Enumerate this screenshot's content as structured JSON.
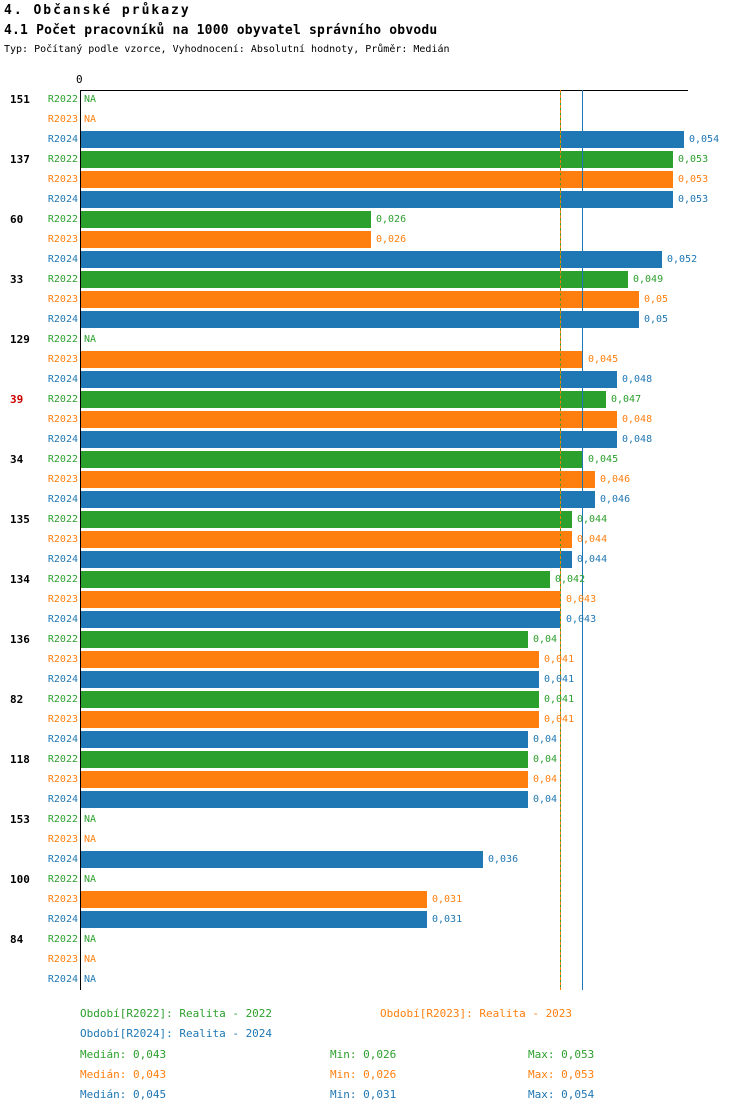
{
  "page": {
    "title": "4. Občanské průkazy",
    "subtitle": "4.1 Počet pracovníků na 1000 obyvatel správního obvodu",
    "meta": "Typ: Počítaný podle vzorce, Vyhodnocení: Absolutní hodnoty, Průměr: Medián"
  },
  "colors": {
    "R2022": "#2ca02c",
    "R2023": "#ff7f0e",
    "R2024": "#1f77b4",
    "highlight_label": "#cc0000",
    "axis": "#000000"
  },
  "chart_data": {
    "type": "bar",
    "orientation": "horizontal",
    "title": "4.1 Počet pracovníků na 1000 obyvatel správního obvodu",
    "xlabel": "",
    "ylabel": "",
    "x_axis": {
      "min": 0,
      "max": 0.054,
      "origin_label": "0"
    },
    "decimal_format": "comma",
    "na_text": "NA",
    "legend_position": "bottom",
    "series_names": [
      "R2022",
      "R2023",
      "R2024"
    ],
    "medians": {
      "R2022": 0.043,
      "R2023": 0.043,
      "R2024": 0.045
    },
    "groups": [
      {
        "label": "151",
        "highlight": false,
        "values": {
          "R2022": null,
          "R2023": null,
          "R2024": 0.054
        },
        "display": {
          "R2022": "NA",
          "R2023": "NA",
          "R2024": "0,054"
        }
      },
      {
        "label": "137",
        "highlight": false,
        "values": {
          "R2022": 0.053,
          "R2023": 0.053,
          "R2024": 0.053
        },
        "display": {
          "R2022": "0,053",
          "R2023": "0,053",
          "R2024": "0,053"
        }
      },
      {
        "label": "60",
        "highlight": false,
        "values": {
          "R2022": 0.026,
          "R2023": 0.026,
          "R2024": 0.052
        },
        "display": {
          "R2022": "0,026",
          "R2023": "0,026",
          "R2024": "0,052"
        }
      },
      {
        "label": "33",
        "highlight": false,
        "values": {
          "R2022": 0.049,
          "R2023": 0.05,
          "R2024": 0.05
        },
        "display": {
          "R2022": "0,049",
          "R2023": "0,05",
          "R2024": "0,05"
        }
      },
      {
        "label": "129",
        "highlight": false,
        "values": {
          "R2022": null,
          "R2023": 0.045,
          "R2024": 0.048
        },
        "display": {
          "R2022": "NA",
          "R2023": "0,045",
          "R2024": "0,048"
        }
      },
      {
        "label": "39",
        "highlight": true,
        "values": {
          "R2022": 0.047,
          "R2023": 0.048,
          "R2024": 0.048
        },
        "display": {
          "R2022": "0,047",
          "R2023": "0,048",
          "R2024": "0,048"
        }
      },
      {
        "label": "34",
        "highlight": false,
        "values": {
          "R2022": 0.045,
          "R2023": 0.046,
          "R2024": 0.046
        },
        "display": {
          "R2022": "0,045",
          "R2023": "0,046",
          "R2024": "0,046"
        }
      },
      {
        "label": "135",
        "highlight": false,
        "values": {
          "R2022": 0.044,
          "R2023": 0.044,
          "R2024": 0.044
        },
        "display": {
          "R2022": "0,044",
          "R2023": "0,044",
          "R2024": "0,044"
        }
      },
      {
        "label": "134",
        "highlight": false,
        "values": {
          "R2022": 0.042,
          "R2023": 0.043,
          "R2024": 0.043
        },
        "display": {
          "R2022": "0,042",
          "R2023": "0,043",
          "R2024": "0,043"
        }
      },
      {
        "label": "136",
        "highlight": false,
        "values": {
          "R2022": 0.04,
          "R2023": 0.041,
          "R2024": 0.041
        },
        "display": {
          "R2022": "0,04",
          "R2023": "0,041",
          "R2024": "0,041"
        }
      },
      {
        "label": "82",
        "highlight": false,
        "values": {
          "R2022": 0.041,
          "R2023": 0.041,
          "R2024": 0.04
        },
        "display": {
          "R2022": "0,041",
          "R2023": "0,041",
          "R2024": "0,04"
        }
      },
      {
        "label": "118",
        "highlight": false,
        "values": {
          "R2022": 0.04,
          "R2023": 0.04,
          "R2024": 0.04
        },
        "display": {
          "R2022": "0,04",
          "R2023": "0,04",
          "R2024": "0,04"
        }
      },
      {
        "label": "153",
        "highlight": false,
        "values": {
          "R2022": null,
          "R2023": null,
          "R2024": 0.036
        },
        "display": {
          "R2022": "NA",
          "R2023": "NA",
          "R2024": "0,036"
        }
      },
      {
        "label": "100",
        "highlight": false,
        "values": {
          "R2022": null,
          "R2023": 0.031,
          "R2024": 0.031
        },
        "display": {
          "R2022": "NA",
          "R2023": "0,031",
          "R2024": "0,031"
        }
      },
      {
        "label": "84",
        "highlight": false,
        "values": {
          "R2022": null,
          "R2023": null,
          "R2024": null
        },
        "display": {
          "R2022": "NA",
          "R2023": "NA",
          "R2024": "NA"
        }
      }
    ]
  },
  "footer": {
    "legend": [
      {
        "series": "R2022",
        "text": "Období[R2022]: Realita - 2022"
      },
      {
        "series": "R2023",
        "text": "Období[R2023]: Realita - 2023"
      },
      {
        "series": "R2024",
        "text": "Období[R2024]: Realita - 2024"
      }
    ],
    "stats": [
      {
        "series": "R2022",
        "median": "Medián: 0,043",
        "min": "Min: 0,026",
        "max": "Max: 0,053"
      },
      {
        "series": "R2023",
        "median": "Medián: 0,043",
        "min": "Min: 0,026",
        "max": "Max: 0,053"
      },
      {
        "series": "R2024",
        "median": "Medián: 0,045",
        "min": "Min: 0,031",
        "max": "Max: 0,054"
      }
    ]
  }
}
